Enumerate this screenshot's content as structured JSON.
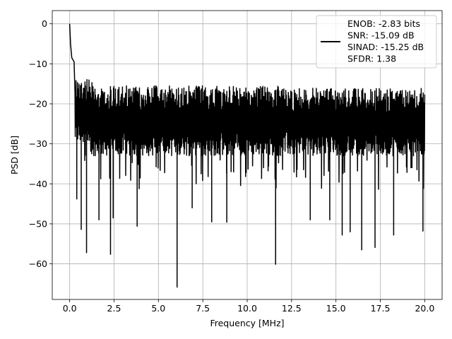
{
  "chart_data": {
    "type": "line",
    "title": "",
    "xlabel": "Frequency [MHz]",
    "ylabel": "PSD [dB]",
    "xlim": [
      -0.98,
      20.98
    ],
    "ylim": [
      -68.9,
      3.3
    ],
    "xticks": [
      0.0,
      2.5,
      5.0,
      7.5,
      10.0,
      12.5,
      15.0,
      17.5,
      20.0
    ],
    "xtick_labels": [
      "0.0",
      "2.5",
      "5.0",
      "7.5",
      "10.0",
      "12.5",
      "15.0",
      "17.5",
      "20.0"
    ],
    "yticks": [
      0,
      -10,
      -20,
      -30,
      -40,
      -50,
      -60
    ],
    "ytick_labels": [
      "0",
      "−10",
      "−20",
      "−30",
      "−40",
      "−50",
      "−60"
    ],
    "grid": true,
    "legend_placement": "top-right",
    "legend_lines": [
      "ENOB: -2.83 bits",
      "SNR: -15.09 dB",
      "SINAD: -15.25 dB",
      "SFDR: 1.38"
    ],
    "series": [
      {
        "color": "#000000",
        "x_range": [
          0,
          20
        ],
        "points_description": "noise floor fluctuating roughly between -15 and -35 dB across 0-20 MHz",
        "peaks": [
          {
            "x": 0.0,
            "y": 0.0
          },
          {
            "x": 0.05,
            "y": -5.0
          },
          {
            "x": 0.12,
            "y": -8.5
          },
          {
            "x": 0.25,
            "y": -9.5
          }
        ],
        "dips": [
          {
            "x": 0.4,
            "y": -43.8
          },
          {
            "x": 0.65,
            "y": -51.4
          },
          {
            "x": 0.95,
            "y": -57.2
          },
          {
            "x": 1.65,
            "y": -49.0
          },
          {
            "x": 2.3,
            "y": -57.6
          },
          {
            "x": 2.45,
            "y": -48.5
          },
          {
            "x": 3.8,
            "y": -50.6
          },
          {
            "x": 6.05,
            "y": -65.8
          },
          {
            "x": 6.9,
            "y": -46.0
          },
          {
            "x": 8.0,
            "y": -49.5
          },
          {
            "x": 8.85,
            "y": -49.6
          },
          {
            "x": 11.6,
            "y": -60.1
          },
          {
            "x": 13.55,
            "y": -49.0
          },
          {
            "x": 14.65,
            "y": -49.0
          },
          {
            "x": 15.35,
            "y": -52.8
          },
          {
            "x": 15.8,
            "y": -52.0
          },
          {
            "x": 16.45,
            "y": -56.5
          },
          {
            "x": 17.2,
            "y": -55.9
          },
          {
            "x": 18.25,
            "y": -52.8
          },
          {
            "x": 19.9,
            "y": -51.8
          }
        ]
      }
    ]
  }
}
